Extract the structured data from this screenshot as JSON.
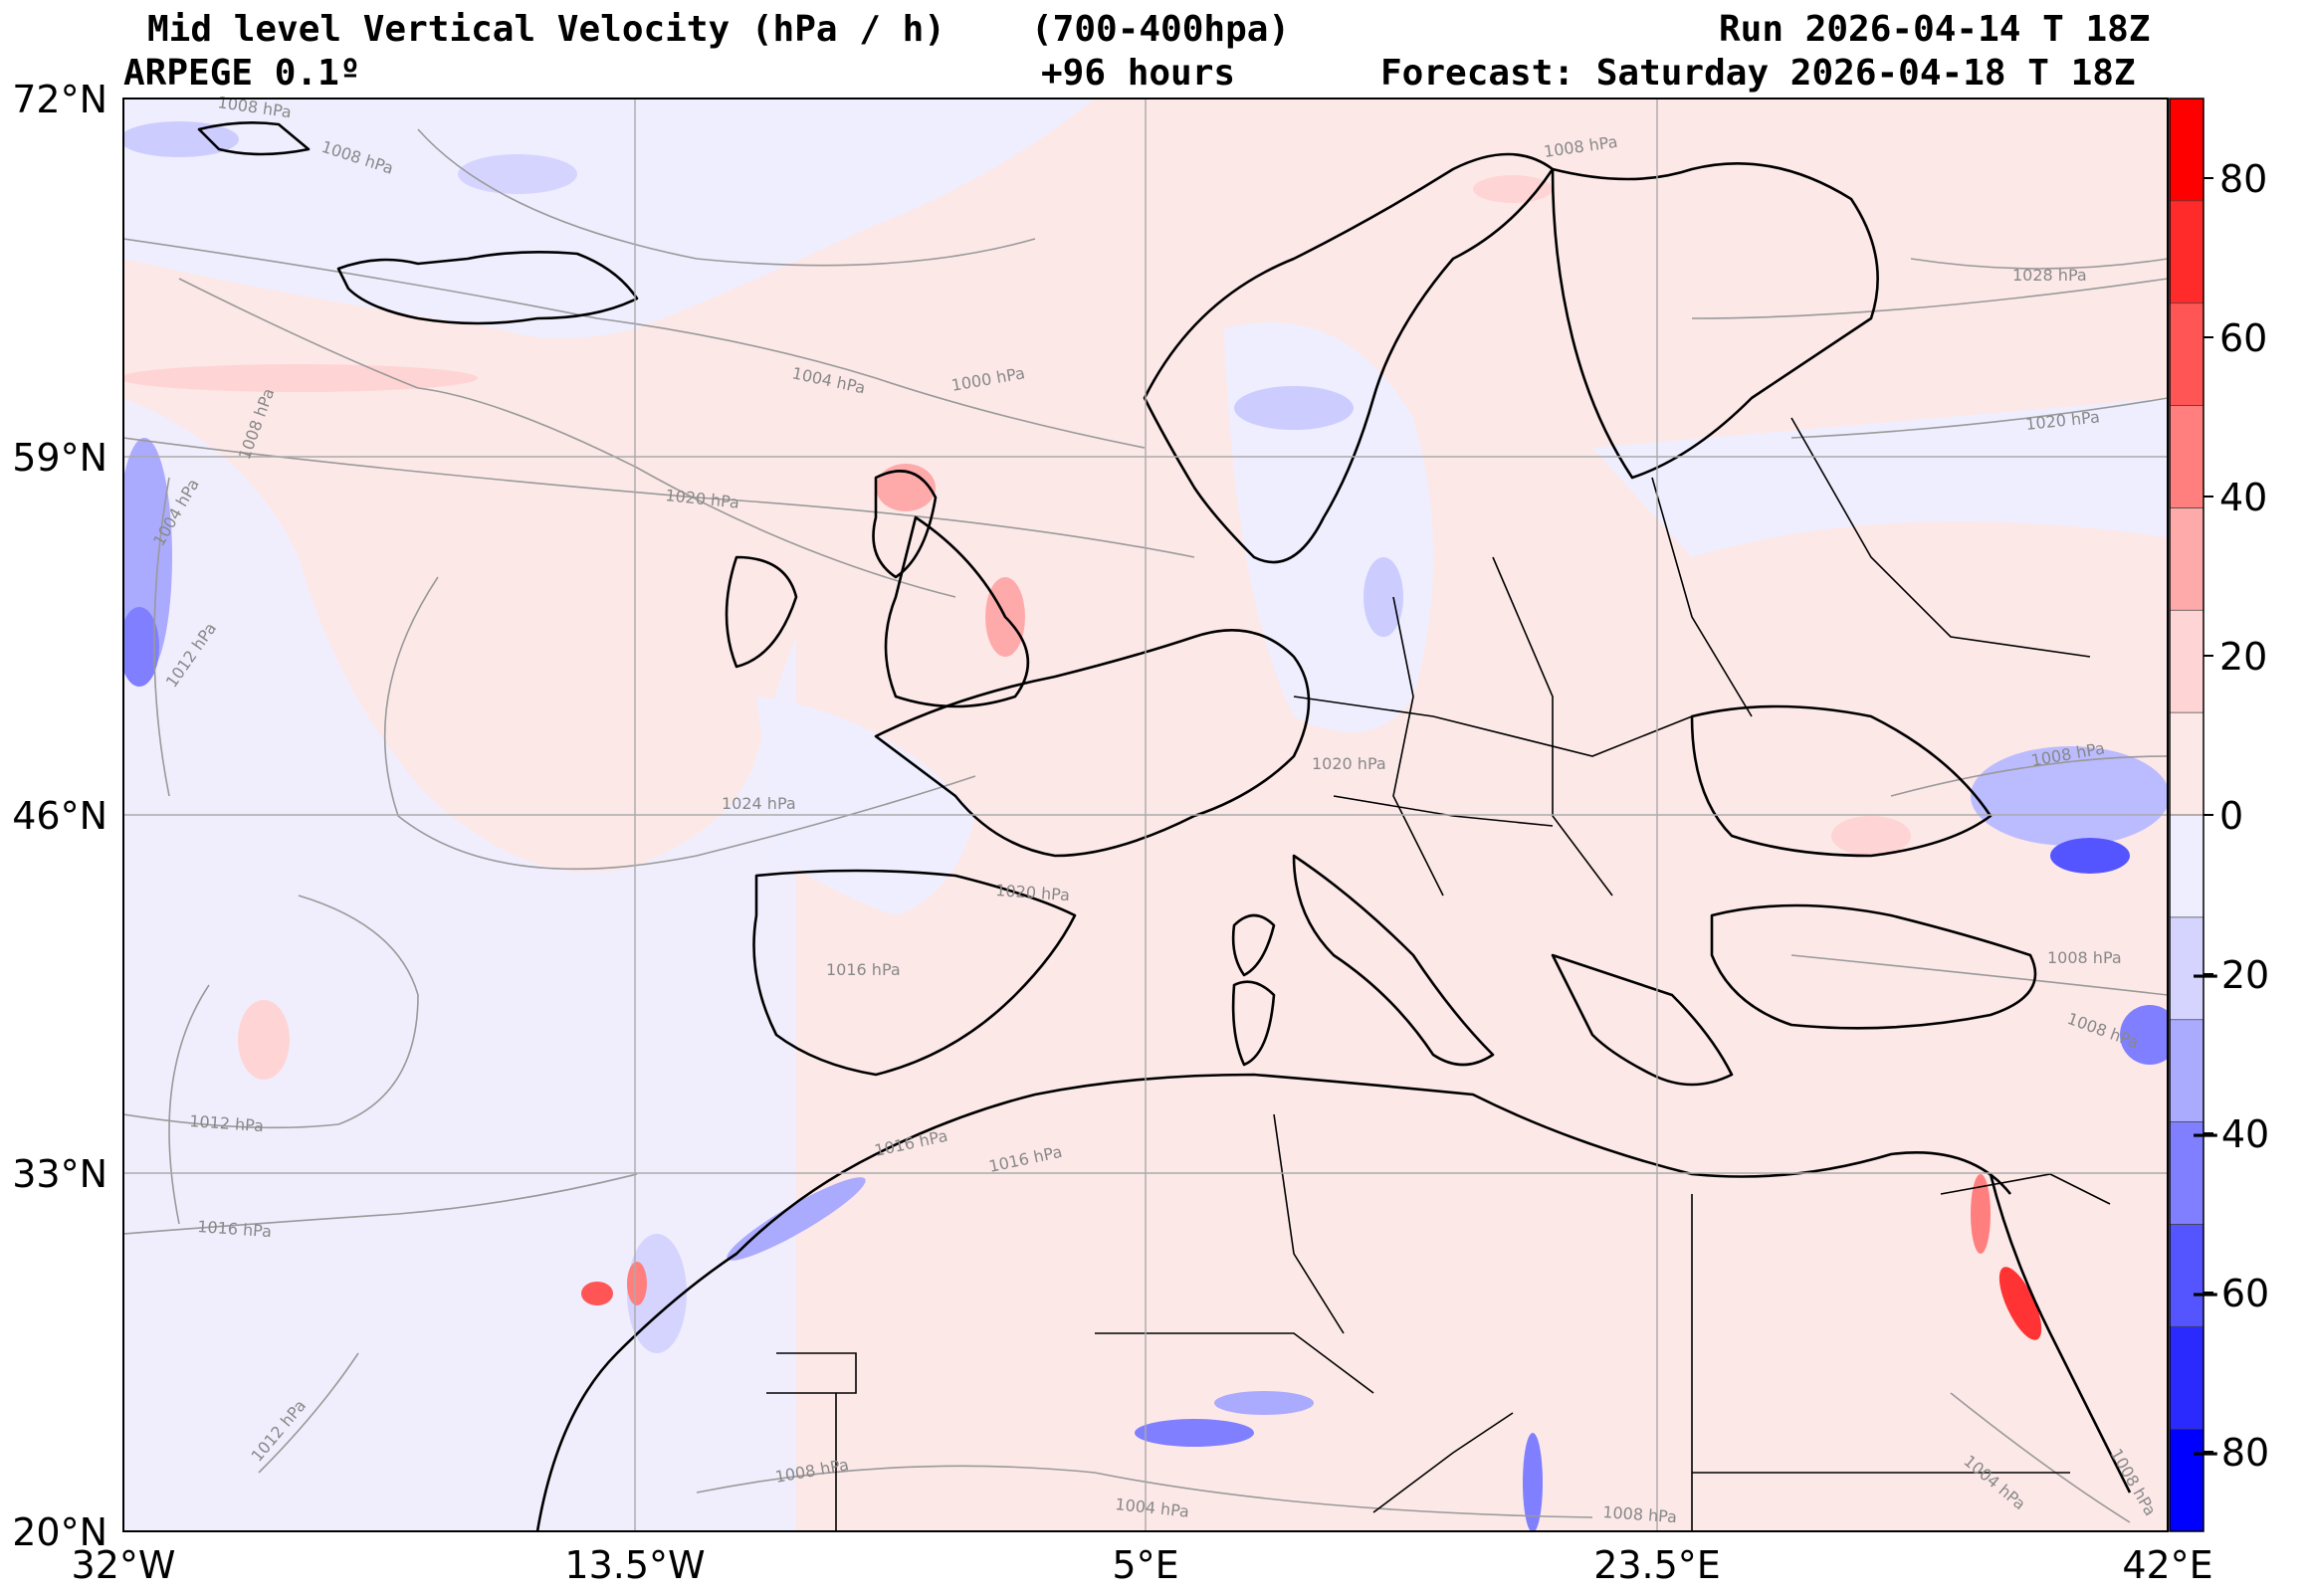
{
  "header": {
    "title": "Mid level Vertical Velocity (hPa / h)",
    "levels": "(700-400hpa)",
    "run": "Run 2026-04-14 T 18Z",
    "model": "ARPEGE 0.1º",
    "lead": "+96 hours",
    "forecast": "Forecast: Saturday 2026-04-18 T 18Z"
  },
  "map": {
    "lat_ticks": [
      "72°N",
      "59°N",
      "46°N",
      "33°N",
      "20°N"
    ],
    "lon_ticks": [
      "32°W",
      "13.5°W",
      "5°E",
      "23.5°E",
      "42°E"
    ],
    "extent": {
      "lon_min": -32,
      "lon_max": 42,
      "lat_min": 20,
      "lat_max": 72
    },
    "isobar_labels": [
      {
        "text": "1008 hPa"
      },
      {
        "text": "1008 hPa"
      },
      {
        "text": "1004 hPa"
      },
      {
        "text": "1000 hPa"
      },
      {
        "text": "1008 hPa"
      },
      {
        "text": "1020 hPa"
      },
      {
        "text": "1004 hPa"
      },
      {
        "text": "1012 hPa"
      },
      {
        "text": "1024 hPa"
      },
      {
        "text": "1020 hPa"
      },
      {
        "text": "1016 hPa"
      },
      {
        "text": "1012 hPa"
      },
      {
        "text": "1016 hPa"
      },
      {
        "text": "1016 hPa"
      },
      {
        "text": "1016 hPa"
      },
      {
        "text": "1012 hPa"
      },
      {
        "text": "1008 hPa"
      },
      {
        "text": "1004 hPa"
      },
      {
        "text": "1008 hPa"
      },
      {
        "text": "1028 hPa"
      },
      {
        "text": "1020 hPa"
      },
      {
        "text": "1008 hPa"
      },
      {
        "text": "1008 hPa"
      },
      {
        "text": "1008 hPa"
      },
      {
        "text": "1004 hPa"
      },
      {
        "text": "1020 hPa"
      },
      {
        "text": "1008 hPa"
      },
      {
        "text": "1008 hPa"
      }
    ]
  },
  "colorbar": {
    "ticks": [
      "80",
      "60",
      "40",
      "20",
      "0",
      "−20",
      "−40",
      "−60",
      "−80"
    ],
    "colors": [
      "#ff0000",
      "#ff2a2a",
      "#ff5555",
      "#ff7f7f",
      "#ffaaaa",
      "#ffd4d4",
      "#fde8e8",
      "#eeeeff",
      "#d4d4ff",
      "#aaaaff",
      "#7f7fff",
      "#5555ff",
      "#2a2aff",
      "#0000ff"
    ]
  },
  "colors": {
    "positive_bg": "#fde8e8",
    "negative_bg": "#eeeeff",
    "isobar": "#888888",
    "coast": "#000000"
  }
}
